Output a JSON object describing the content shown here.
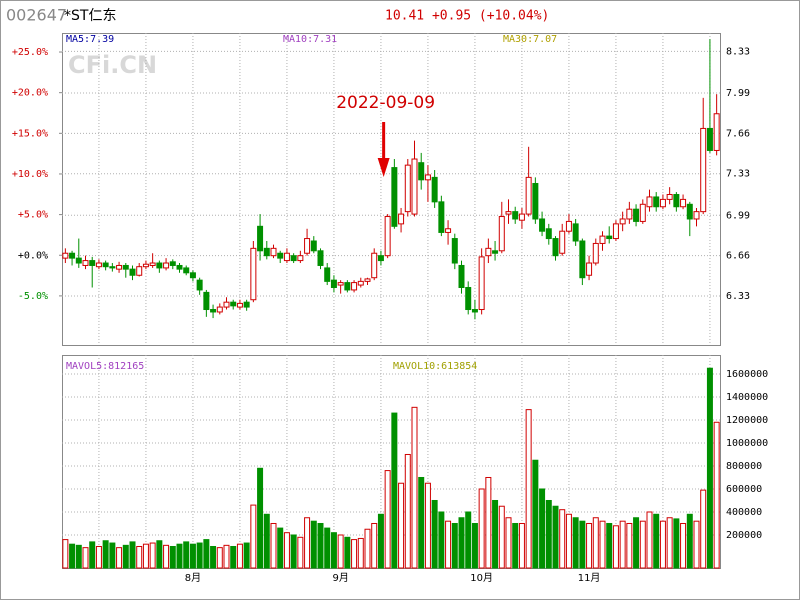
{
  "header": {
    "code": "002647",
    "name": "*ST仁东",
    "quote": "10.41 +0.95 (+10.04%)"
  },
  "chart_data": [
    {
      "type": "candlestick",
      "watermark": "CFi.CN",
      "ma_labels": [
        {
          "text": "MA5:7.39",
          "color": "#0000a0"
        },
        {
          "text": "MA10:7.31",
          "color": "#a040c0"
        },
        {
          "text": "MA30:7.07",
          "color": "#b0a000"
        }
      ],
      "annotation": {
        "text": "2022-09-09",
        "index": 48
      },
      "up_color": "#d00000",
      "down_color": "#009000",
      "grid": true,
      "ylim": [
        5.93,
        8.48
      ],
      "yticks": [
        8.33,
        7.99,
        7.66,
        7.33,
        6.99,
        6.66,
        6.33
      ],
      "y2lim": [
        -11.04,
        27.34
      ],
      "y2ticks": [
        {
          "value": 25,
          "label": "+25.0%"
        },
        {
          "value": 20,
          "label": "+20.0%"
        },
        {
          "value": 15,
          "label": "+15.0%"
        },
        {
          "value": 10,
          "label": "+10.0%"
        },
        {
          "value": 5,
          "label": "+5.0%"
        },
        {
          "value": 0,
          "label": "+0.0%"
        },
        {
          "value": -5,
          "label": "-5.0%"
        }
      ],
      "categories": [
        null,
        null,
        null,
        null,
        null,
        null,
        null,
        null,
        null,
        null,
        null,
        null,
        null,
        null,
        null,
        null,
        null,
        null,
        null,
        "8月",
        null,
        null,
        null,
        null,
        null,
        null,
        null,
        null,
        null,
        null,
        null,
        null,
        null,
        null,
        null,
        null,
        null,
        null,
        null,
        null,
        null,
        "9月",
        null,
        null,
        null,
        null,
        null,
        null,
        null,
        null,
        null,
        null,
        null,
        null,
        null,
        null,
        null,
        null,
        null,
        null,
        null,
        null,
        "10月",
        null,
        null,
        null,
        null,
        null,
        null,
        null,
        null,
        null,
        null,
        null,
        null,
        null,
        null,
        null,
        "11月",
        null,
        null,
        null,
        null,
        null,
        null,
        null,
        null,
        null,
        null,
        null,
        null,
        null,
        null,
        null,
        null,
        null,
        null,
        null
      ],
      "candles": [
        [
          6.64,
          6.72,
          6.6,
          6.68
        ],
        [
          6.68,
          6.7,
          6.58,
          6.64
        ],
        [
          6.64,
          6.8,
          6.56,
          6.6
        ],
        [
          6.58,
          6.66,
          6.55,
          6.62
        ],
        [
          6.62,
          6.65,
          6.4,
          6.58
        ],
        [
          6.57,
          6.63,
          6.55,
          6.6
        ],
        [
          6.6,
          6.62,
          6.54,
          6.57
        ],
        [
          6.57,
          6.6,
          6.53,
          6.56
        ],
        [
          6.55,
          6.61,
          6.52,
          6.58
        ],
        [
          6.58,
          6.6,
          6.48,
          6.55
        ],
        [
          6.55,
          6.58,
          6.46,
          6.5
        ],
        [
          6.5,
          6.6,
          6.49,
          6.57
        ],
        [
          6.57,
          6.62,
          6.55,
          6.59
        ],
        [
          6.58,
          6.68,
          6.56,
          6.6
        ],
        [
          6.6,
          6.62,
          6.52,
          6.56
        ],
        [
          6.56,
          6.64,
          6.54,
          6.6
        ],
        [
          6.61,
          6.63,
          6.55,
          6.58
        ],
        [
          6.58,
          6.6,
          6.52,
          6.55
        ],
        [
          6.56,
          6.58,
          6.5,
          6.52
        ],
        [
          6.52,
          6.54,
          6.45,
          6.48
        ],
        [
          6.46,
          6.48,
          6.34,
          6.38
        ],
        [
          6.36,
          6.38,
          6.16,
          6.22
        ],
        [
          6.22,
          6.26,
          6.15,
          6.2
        ],
        [
          6.2,
          6.27,
          6.18,
          6.24
        ],
        [
          6.24,
          6.32,
          6.22,
          6.28
        ],
        [
          6.28,
          6.3,
          6.22,
          6.25
        ],
        [
          6.24,
          6.3,
          6.22,
          6.27
        ],
        [
          6.28,
          6.3,
          6.21,
          6.24
        ],
        [
          6.3,
          6.78,
          6.28,
          6.72
        ],
        [
          6.9,
          7.0,
          6.62,
          6.7
        ],
        [
          6.72,
          6.78,
          6.63,
          6.66
        ],
        [
          6.66,
          6.75,
          6.64,
          6.72
        ],
        [
          6.68,
          6.7,
          6.6,
          6.64
        ],
        [
          6.62,
          6.72,
          6.6,
          6.68
        ],
        [
          6.66,
          6.68,
          6.6,
          6.62
        ],
        [
          6.62,
          6.7,
          6.6,
          6.66
        ],
        [
          6.68,
          6.88,
          6.66,
          6.8
        ],
        [
          6.78,
          6.82,
          6.68,
          6.7
        ],
        [
          6.7,
          6.72,
          6.55,
          6.58
        ],
        [
          6.56,
          6.6,
          6.42,
          6.45
        ],
        [
          6.46,
          6.5,
          6.36,
          6.4
        ],
        [
          6.42,
          6.46,
          6.35,
          6.44
        ],
        [
          6.44,
          6.46,
          6.36,
          6.38
        ],
        [
          6.38,
          6.46,
          6.36,
          6.44
        ],
        [
          6.42,
          6.48,
          6.4,
          6.45
        ],
        [
          6.45,
          6.48,
          6.42,
          6.47
        ],
        [
          6.48,
          6.72,
          6.46,
          6.68
        ],
        [
          6.66,
          6.7,
          6.58,
          6.62
        ],
        [
          6.66,
          7.0,
          6.64,
          6.98
        ],
        [
          7.38,
          7.45,
          6.88,
          6.9
        ],
        [
          6.92,
          7.05,
          6.85,
          7.0
        ],
        [
          7.02,
          7.45,
          6.98,
          7.4
        ],
        [
          7.0,
          7.6,
          6.98,
          7.45
        ],
        [
          7.42,
          7.5,
          7.2,
          7.28
        ],
        [
          7.28,
          7.4,
          7.1,
          7.32
        ],
        [
          7.3,
          7.36,
          7.05,
          7.1
        ],
        [
          7.1,
          7.15,
          6.82,
          6.85
        ],
        [
          6.85,
          6.95,
          6.75,
          6.88
        ],
        [
          6.8,
          6.84,
          6.55,
          6.6
        ],
        [
          6.58,
          6.62,
          6.35,
          6.4
        ],
        [
          6.4,
          6.45,
          6.18,
          6.22
        ],
        [
          6.22,
          6.3,
          6.14,
          6.2
        ],
        [
          6.22,
          6.72,
          6.18,
          6.65
        ],
        [
          6.66,
          6.8,
          6.6,
          6.72
        ],
        [
          6.7,
          6.78,
          6.62,
          6.68
        ],
        [
          6.7,
          7.1,
          6.68,
          6.98
        ],
        [
          7.0,
          7.12,
          6.92,
          7.02
        ],
        [
          7.02,
          7.06,
          6.92,
          6.96
        ],
        [
          6.95,
          7.05,
          6.88,
          7.0
        ],
        [
          7.0,
          7.55,
          6.98,
          7.3
        ],
        [
          7.25,
          7.3,
          6.92,
          6.96
        ],
        [
          6.96,
          7.02,
          6.82,
          6.86
        ],
        [
          6.88,
          6.92,
          6.75,
          6.8
        ],
        [
          6.8,
          6.82,
          6.62,
          6.66
        ],
        [
          6.68,
          6.92,
          6.66,
          6.86
        ],
        [
          6.86,
          7.0,
          6.84,
          6.94
        ],
        [
          6.92,
          6.96,
          6.74,
          6.78
        ],
        [
          6.78,
          6.8,
          6.42,
          6.48
        ],
        [
          6.5,
          6.66,
          6.46,
          6.6
        ],
        [
          6.6,
          6.8,
          6.58,
          6.76
        ],
        [
          6.76,
          6.86,
          6.7,
          6.82
        ],
        [
          6.82,
          6.9,
          6.76,
          6.8
        ],
        [
          6.8,
          6.95,
          6.78,
          6.92
        ],
        [
          6.92,
          7.02,
          6.86,
          6.96
        ],
        [
          6.96,
          7.1,
          6.92,
          7.04
        ],
        [
          7.04,
          7.08,
          6.9,
          6.94
        ],
        [
          6.94,
          7.12,
          6.92,
          7.08
        ],
        [
          7.06,
          7.2,
          7.02,
          7.14
        ],
        [
          7.14,
          7.18,
          7.02,
          7.06
        ],
        [
          7.06,
          7.16,
          7.04,
          7.12
        ],
        [
          7.12,
          7.22,
          7.08,
          7.16
        ],
        [
          7.16,
          7.18,
          7.02,
          7.06
        ],
        [
          7.06,
          7.16,
          7.04,
          7.12
        ],
        [
          7.08,
          7.1,
          6.82,
          6.96
        ],
        [
          6.96,
          7.05,
          6.9,
          7.02
        ],
        [
          7.02,
          7.95,
          7.0,
          7.7
        ],
        [
          7.7,
          8.43,
          7.5,
          7.52
        ],
        [
          7.52,
          7.98,
          7.48,
          7.82
        ]
      ]
    },
    {
      "type": "volume",
      "ma_labels": [
        {
          "text": "MAVOL5:812165",
          "color": "#a040c0"
        },
        {
          "text": "MAVOL10:613854",
          "color": "#a0a000"
        }
      ],
      "ylim": [
        -87000,
        1765000
      ],
      "yticks": [
        1600000,
        1400000,
        1200000,
        1000000,
        800000,
        600000,
        400000,
        200000
      ],
      "values": [
        160000,
        120000,
        110000,
        90000,
        140000,
        100000,
        150000,
        130000,
        90000,
        110000,
        140000,
        100000,
        120000,
        130000,
        150000,
        110000,
        100000,
        120000,
        140000,
        120000,
        130000,
        160000,
        100000,
        90000,
        110000,
        100000,
        120000,
        130000,
        460000,
        780000,
        380000,
        300000,
        260000,
        220000,
        200000,
        180000,
        350000,
        320000,
        300000,
        260000,
        220000,
        200000,
        180000,
        160000,
        170000,
        250000,
        300000,
        380000,
        760000,
        1260000,
        650000,
        900000,
        1310000,
        700000,
        650000,
        500000,
        400000,
        320000,
        300000,
        350000,
        400000,
        300000,
        600000,
        700000,
        500000,
        450000,
        350000,
        300000,
        300000,
        1290000,
        850000,
        600000,
        500000,
        450000,
        420000,
        380000,
        350000,
        320000,
        300000,
        350000,
        320000,
        300000,
        280000,
        320000,
        300000,
        350000,
        320000,
        400000,
        380000,
        320000,
        350000,
        340000,
        300000,
        380000,
        320000,
        590000,
        1650000,
        1180000
      ]
    }
  ]
}
